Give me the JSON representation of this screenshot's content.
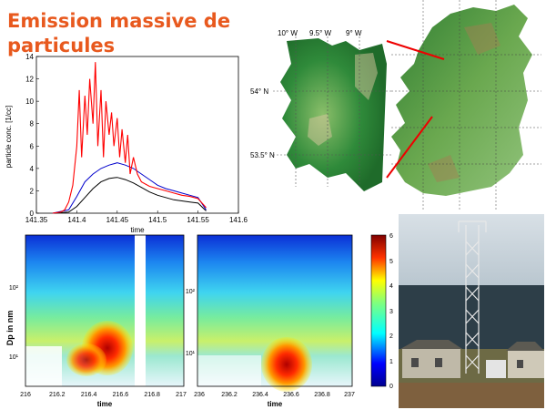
{
  "slide": {
    "title": "Emission massive de particules"
  },
  "colors": {
    "title": "#e8591e",
    "series_red": "#ff0000",
    "series_blue": "#0000cc",
    "series_black": "#000000"
  },
  "map": {
    "lon_labels": [
      "10° W",
      "9.5° W",
      "9° W"
    ],
    "lat_labels": [
      "54° N",
      "53.5° N"
    ]
  },
  "heatmap": {
    "ylabel": "Dp in nm",
    "left": {
      "xlabel": "time",
      "xticks": [
        "216",
        "216.2",
        "216.4",
        "216.6",
        "216.8",
        "217"
      ],
      "yticks": [
        "10²",
        "10¹"
      ]
    },
    "right": {
      "xlabel": "time",
      "xticks": [
        "236",
        "236.2",
        "236.4",
        "236.6",
        "236.8",
        "237"
      ],
      "yticks": [
        "10²",
        "10¹"
      ]
    },
    "colorbar_ticks": [
      "6",
      "5",
      "4",
      "3",
      "2",
      "1",
      "0"
    ]
  },
  "chart_data": {
    "type": "line",
    "title": "",
    "xlabel": "time",
    "ylabel": "particle conc. [1/cc]",
    "xlim": [
      141.35,
      141.6
    ],
    "ylim": [
      0,
      14
    ],
    "xticks": [
      "141.35",
      "141.4",
      "141.45",
      "141.5",
      "141.55",
      "141.6"
    ],
    "yticks": [
      "0",
      "2",
      "4",
      "6",
      "8",
      "10",
      "12",
      "14"
    ],
    "series": [
      {
        "color": "#ff0000",
        "x": [
          141.37,
          141.38,
          141.385,
          141.39,
          141.395,
          141.4,
          141.403,
          141.406,
          141.41,
          141.413,
          141.416,
          141.42,
          141.423,
          141.426,
          141.43,
          141.433,
          141.436,
          141.44,
          141.443,
          141.446,
          141.45,
          141.453,
          141.456,
          141.46,
          141.463,
          141.466,
          141.47,
          141.475,
          141.48,
          141.49,
          141.5,
          141.51,
          141.52,
          141.53,
          141.54,
          141.55,
          141.56
        ],
        "y": [
          0,
          0.1,
          0.3,
          1,
          2.5,
          6,
          11,
          5,
          10.5,
          7,
          12,
          8,
          13.5,
          6,
          11,
          5,
          10,
          7,
          9,
          6,
          8.5,
          5,
          7.5,
          4.5,
          7,
          3.5,
          5,
          3.5,
          2.8,
          2.4,
          2.2,
          2.0,
          1.8,
          1.6,
          1.5,
          1.3,
          0.5
        ]
      },
      {
        "color": "#0000cc",
        "x": [
          141.37,
          141.39,
          141.4,
          141.41,
          141.42,
          141.43,
          141.44,
          141.45,
          141.46,
          141.47,
          141.48,
          141.49,
          141.5,
          141.51,
          141.52,
          141.53,
          141.54,
          141.55,
          141.56
        ],
        "y": [
          0,
          0.3,
          1.5,
          2.8,
          3.5,
          4,
          4.3,
          4.5,
          4.3,
          4,
          3.5,
          3.0,
          2.5,
          2.2,
          2.0,
          1.8,
          1.6,
          1.4,
          0.3
        ]
      },
      {
        "color": "#000000",
        "x": [
          141.37,
          141.39,
          141.4,
          141.41,
          141.42,
          141.43,
          141.44,
          141.45,
          141.46,
          141.47,
          141.48,
          141.49,
          141.5,
          141.51,
          141.52,
          141.53,
          141.54,
          141.55,
          141.56
        ],
        "y": [
          0,
          0.1,
          0.6,
          1.4,
          2.2,
          2.8,
          3.1,
          3.2,
          3.0,
          2.7,
          2.3,
          1.9,
          1.6,
          1.4,
          1.2,
          1.1,
          1.0,
          0.9,
          0.2
        ]
      }
    ]
  }
}
